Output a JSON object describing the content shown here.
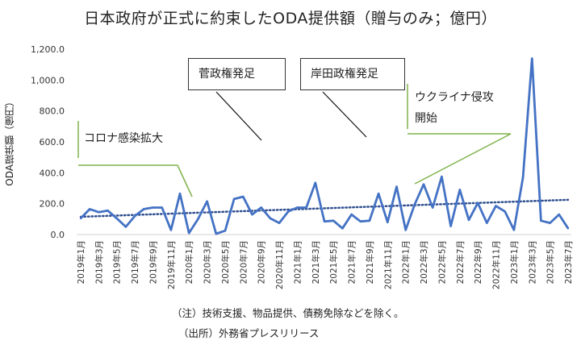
{
  "title": "日本政府が正式に約束したODA提供額（贈与のみ；億円）",
  "chart_data": {
    "type": "line",
    "ylabel": "ODA提供額（億円）",
    "ylim": [
      0,
      1200
    ],
    "yticks": [
      "0.0",
      "200.0",
      "400.0",
      "600.0",
      "800.0",
      "1,000.0",
      "1,200.0"
    ],
    "x_tick_labels": [
      "2019年1月",
      "2019年3月",
      "2019年5月",
      "2019年7月",
      "2019年9月",
      "2019年11月",
      "2020年1月",
      "2020年3月",
      "2020年5月",
      "2020年7月",
      "2020年9月",
      "2020年11月",
      "2021年1月",
      "2021年3月",
      "2021年5月",
      "2021年7月",
      "2021年9月",
      "2021年11月",
      "2022年1月",
      "2022年3月",
      "2022年5月",
      "2022年7月",
      "2022年9月",
      "2022年11月",
      "2023年1月",
      "2023年3月",
      "2023年5月",
      "2023年7月"
    ],
    "x": [
      "2019-01",
      "2019-02",
      "2019-03",
      "2019-04",
      "2019-05",
      "2019-06",
      "2019-07",
      "2019-08",
      "2019-09",
      "2019-10",
      "2019-11",
      "2019-12",
      "2020-01",
      "2020-02",
      "2020-03",
      "2020-04",
      "2020-05",
      "2020-06",
      "2020-07",
      "2020-08",
      "2020-09",
      "2020-10",
      "2020-11",
      "2020-12",
      "2021-01",
      "2021-02",
      "2021-03",
      "2021-04",
      "2021-05",
      "2021-06",
      "2021-07",
      "2021-08",
      "2021-09",
      "2021-10",
      "2021-11",
      "2021-12",
      "2022-01",
      "2022-02",
      "2022-03",
      "2022-04",
      "2022-05",
      "2022-06",
      "2022-07",
      "2022-08",
      "2022-09",
      "2022-10",
      "2022-11",
      "2022-12",
      "2023-01",
      "2023-02",
      "2023-03",
      "2023-04",
      "2023-05",
      "2023-06",
      "2023-07"
    ],
    "series": [
      {
        "values": [
          105,
          165,
          145,
          155,
          105,
          50,
          120,
          165,
          175,
          175,
          30,
          265,
          10,
          100,
          215,
          5,
          25,
          230,
          245,
          130,
          175,
          105,
          75,
          150,
          175,
          175,
          335,
          85,
          90,
          40,
          130,
          85,
          90,
          265,
          80,
          310,
          30,
          195,
          325,
          175,
          375,
          55,
          290,
          95,
          205,
          75,
          185,
          150,
          30,
          370,
          1140,
          90,
          75,
          130,
          40
        ],
        "color": "#4472c4"
      }
    ],
    "trendline": {
      "style": "dotted",
      "color": "#2f4f8f",
      "start": 115,
      "end": 225
    },
    "annotations": [
      {
        "text": "菅政権発足",
        "boxed": true
      },
      {
        "text": "岸田政権発足",
        "boxed": true
      },
      {
        "text": "コロナ感染拡大",
        "boxed": false
      },
      {
        "text": "ウクライナ侵攻",
        "text2": "開始",
        "boxed": false
      }
    ],
    "grid": false,
    "accent_line_color": "#7fb24a"
  },
  "notes": {
    "note1": "（注）技術支援、物品提供、債務免除などを除く。",
    "note2": "（出所）外務省プレスリリース"
  }
}
